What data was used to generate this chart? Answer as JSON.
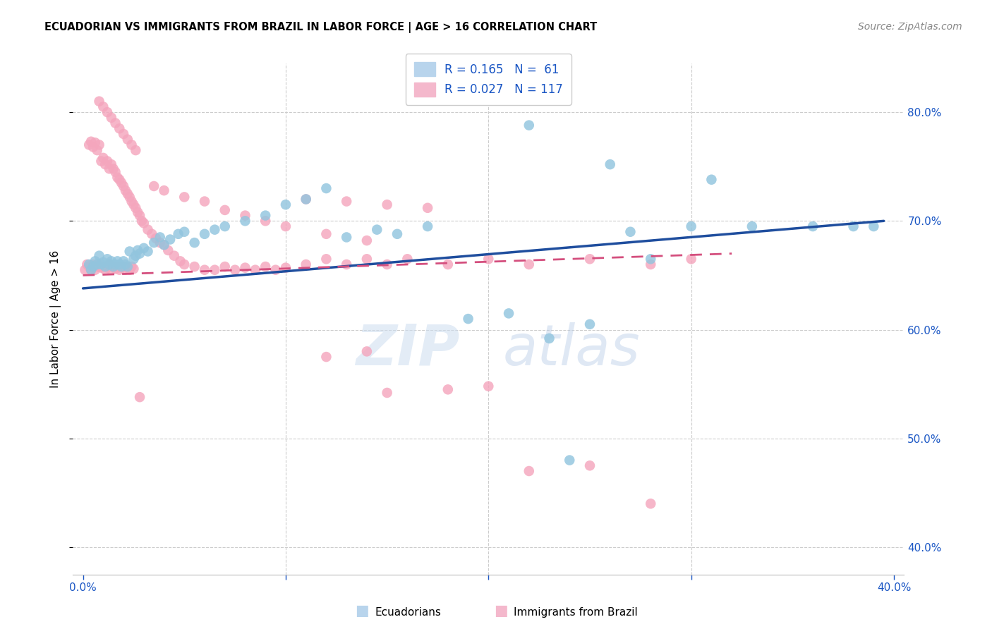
{
  "title": "ECUADORIAN VS IMMIGRANTS FROM BRAZIL IN LABOR FORCE | AGE > 16 CORRELATION CHART",
  "source": "Source: ZipAtlas.com",
  "ylabel": "In Labor Force | Age > 16",
  "legend_blue_R": "0.165",
  "legend_blue_N": "61",
  "legend_pink_R": "0.027",
  "legend_pink_N": "117",
  "blue_color": "#92c5de",
  "pink_color": "#f4a6bd",
  "blue_line_color": "#1f4e9e",
  "pink_line_color": "#d44f7e",
  "watermark_zip_color": "#ccddf0",
  "watermark_atlas_color": "#b8cce8",
  "x_ticks": [
    0.0,
    0.1,
    0.2,
    0.3,
    0.4
  ],
  "x_tick_labels": [
    "0.0%",
    "",
    "",
    "",
    "40.0%"
  ],
  "y_ticks": [
    0.4,
    0.5,
    0.6,
    0.7,
    0.8
  ],
  "y_tick_labels": [
    "40.0%",
    "50.0%",
    "60.0%",
    "70.0%",
    "80.0%"
  ],
  "xlim": [
    -0.005,
    0.405
  ],
  "ylim": [
    0.375,
    0.845
  ],
  "blue_line_x0": 0.0,
  "blue_line_x1": 0.395,
  "blue_line_y0": 0.638,
  "blue_line_y1": 0.7,
  "pink_line_x0": 0.0,
  "pink_line_x1": 0.32,
  "pink_line_y0": 0.65,
  "pink_line_y1": 0.67,
  "blue_scatter_x": [
    0.003,
    0.004,
    0.005,
    0.006,
    0.007,
    0.008,
    0.009,
    0.01,
    0.011,
    0.012,
    0.013,
    0.014,
    0.015,
    0.016,
    0.017,
    0.018,
    0.019,
    0.02,
    0.021,
    0.022,
    0.023,
    0.025,
    0.026,
    0.027,
    0.028,
    0.03,
    0.032,
    0.035,
    0.038,
    0.04,
    0.043,
    0.047,
    0.05,
    0.055,
    0.06,
    0.065,
    0.07,
    0.08,
    0.09,
    0.1,
    0.11,
    0.12,
    0.13,
    0.145,
    0.155,
    0.17,
    0.19,
    0.21,
    0.23,
    0.25,
    0.27,
    0.3,
    0.33,
    0.22,
    0.26,
    0.31,
    0.36,
    0.38,
    0.39,
    0.24,
    0.28
  ],
  "blue_scatter_y": [
    0.66,
    0.655,
    0.658,
    0.663,
    0.66,
    0.668,
    0.66,
    0.662,
    0.658,
    0.665,
    0.66,
    0.663,
    0.658,
    0.66,
    0.663,
    0.66,
    0.658,
    0.663,
    0.66,
    0.658,
    0.672,
    0.665,
    0.668,
    0.673,
    0.67,
    0.675,
    0.672,
    0.68,
    0.685,
    0.678,
    0.683,
    0.688,
    0.69,
    0.68,
    0.688,
    0.692,
    0.695,
    0.7,
    0.705,
    0.715,
    0.72,
    0.73,
    0.685,
    0.692,
    0.688,
    0.695,
    0.61,
    0.615,
    0.592,
    0.605,
    0.69,
    0.695,
    0.695,
    0.788,
    0.752,
    0.738,
    0.695,
    0.695,
    0.695,
    0.48,
    0.665
  ],
  "pink_scatter_x": [
    0.001,
    0.002,
    0.003,
    0.004,
    0.005,
    0.006,
    0.007,
    0.008,
    0.009,
    0.01,
    0.011,
    0.012,
    0.013,
    0.014,
    0.015,
    0.016,
    0.017,
    0.018,
    0.019,
    0.02,
    0.021,
    0.022,
    0.023,
    0.024,
    0.025,
    0.003,
    0.004,
    0.005,
    0.006,
    0.007,
    0.008,
    0.009,
    0.01,
    0.011,
    0.012,
    0.013,
    0.014,
    0.015,
    0.016,
    0.017,
    0.018,
    0.019,
    0.02,
    0.021,
    0.022,
    0.023,
    0.024,
    0.025,
    0.026,
    0.027,
    0.028,
    0.029,
    0.03,
    0.032,
    0.034,
    0.036,
    0.038,
    0.04,
    0.042,
    0.045,
    0.048,
    0.05,
    0.055,
    0.06,
    0.065,
    0.07,
    0.075,
    0.08,
    0.085,
    0.09,
    0.095,
    0.1,
    0.11,
    0.12,
    0.13,
    0.14,
    0.15,
    0.16,
    0.18,
    0.2,
    0.22,
    0.25,
    0.28,
    0.3,
    0.11,
    0.13,
    0.15,
    0.17,
    0.035,
    0.04,
    0.05,
    0.06,
    0.07,
    0.08,
    0.09,
    0.1,
    0.12,
    0.14,
    0.008,
    0.01,
    0.012,
    0.014,
    0.016,
    0.018,
    0.02,
    0.022,
    0.024,
    0.026,
    0.028,
    0.15,
    0.18,
    0.2,
    0.12,
    0.14,
    0.22,
    0.25,
    0.28
  ],
  "pink_scatter_y": [
    0.655,
    0.66,
    0.658,
    0.655,
    0.66,
    0.655,
    0.658,
    0.66,
    0.657,
    0.658,
    0.655,
    0.657,
    0.66,
    0.655,
    0.658,
    0.656,
    0.658,
    0.655,
    0.657,
    0.658,
    0.655,
    0.657,
    0.655,
    0.658,
    0.656,
    0.77,
    0.773,
    0.768,
    0.772,
    0.765,
    0.77,
    0.755,
    0.758,
    0.752,
    0.755,
    0.748,
    0.752,
    0.748,
    0.745,
    0.74,
    0.738,
    0.735,
    0.732,
    0.728,
    0.725,
    0.722,
    0.718,
    0.715,
    0.712,
    0.708,
    0.705,
    0.7,
    0.698,
    0.692,
    0.688,
    0.684,
    0.68,
    0.678,
    0.673,
    0.668,
    0.663,
    0.66,
    0.658,
    0.655,
    0.655,
    0.658,
    0.655,
    0.657,
    0.655,
    0.658,
    0.655,
    0.657,
    0.66,
    0.665,
    0.66,
    0.665,
    0.66,
    0.665,
    0.66,
    0.665,
    0.66,
    0.665,
    0.66,
    0.665,
    0.72,
    0.718,
    0.715,
    0.712,
    0.732,
    0.728,
    0.722,
    0.718,
    0.71,
    0.705,
    0.7,
    0.695,
    0.688,
    0.682,
    0.81,
    0.805,
    0.8,
    0.795,
    0.79,
    0.785,
    0.78,
    0.775,
    0.77,
    0.765,
    0.538,
    0.542,
    0.545,
    0.548,
    0.575,
    0.58,
    0.47,
    0.475,
    0.44
  ]
}
